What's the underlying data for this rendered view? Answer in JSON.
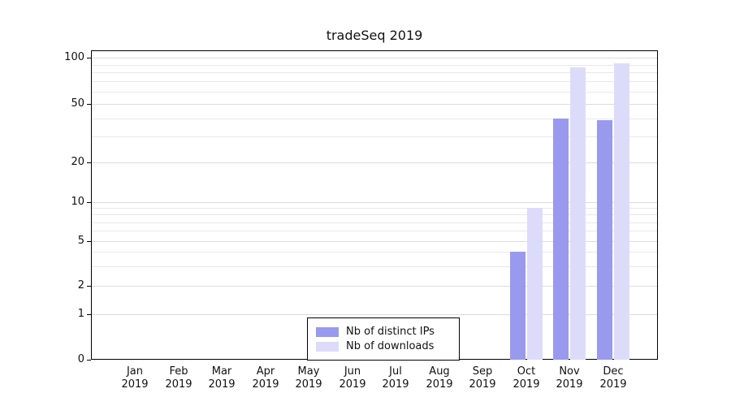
{
  "title": "tradeSeq 2019",
  "colors": {
    "ips": "#9999ee",
    "downloads": "#dcdcfa",
    "grid": "#dcdcdc",
    "axis": "#000000",
    "background": "#ffffff"
  },
  "legend": {
    "items": [
      {
        "label": "Nb of distinct IPs",
        "color": "#9999ee"
      },
      {
        "label": "Nb of downloads",
        "color": "#dcdcfa"
      }
    ]
  },
  "chart_data": {
    "type": "bar",
    "title": "tradeSeq 2019",
    "xlabel": "",
    "ylabel": "",
    "year": "2019",
    "categories": [
      "Jan",
      "Feb",
      "Mar",
      "Apr",
      "May",
      "Jun",
      "Jul",
      "Aug",
      "Sep",
      "Oct",
      "Nov",
      "Dec"
    ],
    "series": [
      {
        "name": "Nb of distinct IPs",
        "color": "#9999ee",
        "values": [
          0,
          0,
          0,
          0,
          0,
          0,
          0,
          0,
          0,
          4,
          40,
          39
        ]
      },
      {
        "name": "Nb of downloads",
        "color": "#dcdcfa",
        "values": [
          0,
          0,
          0,
          0,
          0,
          0,
          0,
          0,
          0,
          9,
          86,
          92
        ]
      }
    ],
    "y_ticks": [
      0,
      1,
      2,
      5,
      10,
      20,
      50,
      100
    ],
    "minor_gridlines": [
      3,
      4,
      6,
      7,
      8,
      9,
      30,
      40,
      60,
      70,
      80,
      90
    ],
    "axis_scale": "log-like with zero baseline",
    "legend_position": "bottom-center",
    "grid": "horizontal"
  }
}
